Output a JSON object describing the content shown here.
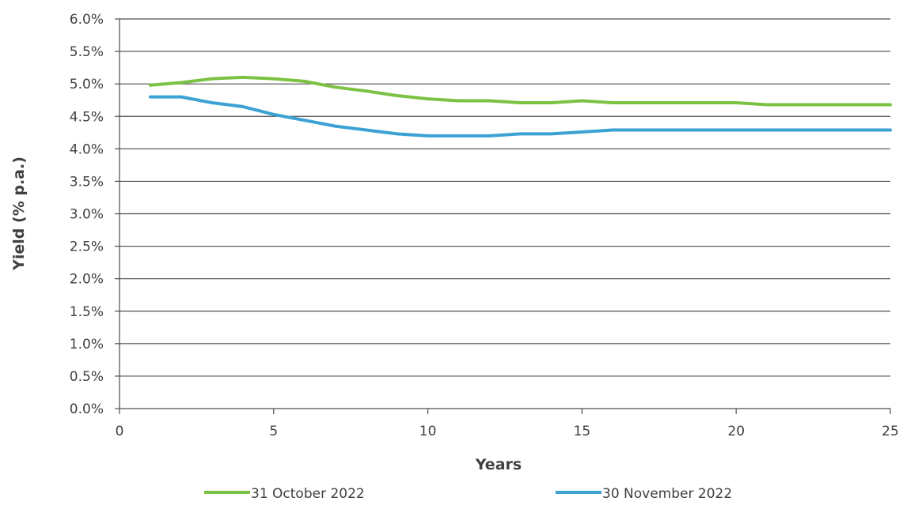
{
  "chart_data": {
    "type": "line",
    "title": "",
    "xlabel": "Years",
    "ylabel": "Yield (% p.a.)",
    "xlim": [
      0,
      25
    ],
    "ylim": [
      0.0,
      6.0
    ],
    "x_ticks": [
      0,
      5,
      10,
      15,
      20,
      25
    ],
    "x_tick_labels": [
      "0",
      "5",
      "10",
      "15",
      "20",
      "25"
    ],
    "y_ticks": [
      0.0,
      0.5,
      1.0,
      1.5,
      2.0,
      2.5,
      3.0,
      3.5,
      4.0,
      4.5,
      5.0,
      5.5,
      6.0
    ],
    "y_tick_labels": [
      "0.0%",
      "0.5%",
      "1.0%",
      "1.5%",
      "2.0%",
      "2.5%",
      "3.0%",
      "3.5%",
      "4.0%",
      "4.5%",
      "5.0%",
      "5.5%",
      "6.0%"
    ],
    "grid": "horizontal",
    "legend_position": "bottom",
    "series": [
      {
        "name": "31 October 2022",
        "color": "#7cc242",
        "x": [
          1,
          2,
          3,
          4,
          5,
          6,
          7,
          8,
          9,
          10,
          11,
          12,
          13,
          14,
          15,
          16,
          17,
          18,
          19,
          20,
          21,
          22,
          23,
          24,
          25
        ],
        "y": [
          4.98,
          5.02,
          5.08,
          5.1,
          5.08,
          5.04,
          4.95,
          4.89,
          4.82,
          4.77,
          4.74,
          4.74,
          4.71,
          4.71,
          4.74,
          4.71,
          4.71,
          4.71,
          4.71,
          4.71,
          4.68,
          4.68,
          4.68,
          4.68,
          4.68
        ]
      },
      {
        "name": "30 November 2022",
        "color": "#3ba2d3",
        "x": [
          1,
          2,
          3,
          4,
          5,
          6,
          7,
          8,
          9,
          10,
          11,
          12,
          13,
          14,
          15,
          16,
          17,
          18,
          19,
          20,
          21,
          22,
          23,
          24,
          25
        ],
        "y": [
          4.8,
          4.8,
          4.71,
          4.65,
          4.53,
          4.44,
          4.35,
          4.29,
          4.23,
          4.2,
          4.2,
          4.2,
          4.23,
          4.23,
          4.26,
          4.29,
          4.29,
          4.29,
          4.29,
          4.29,
          4.29,
          4.29,
          4.29,
          4.29,
          4.29
        ]
      }
    ]
  }
}
